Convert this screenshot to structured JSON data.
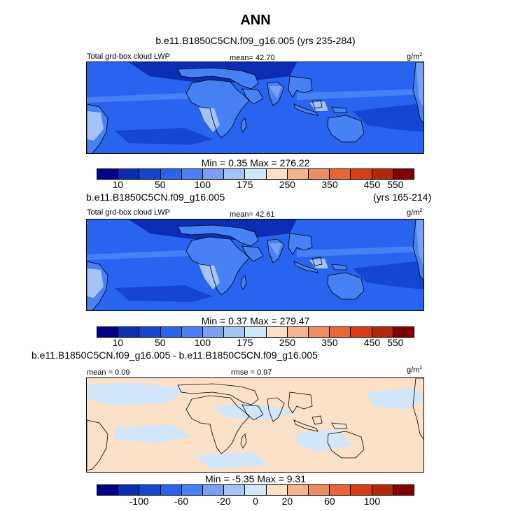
{
  "title": "ANN",
  "panels": [
    {
      "case_title": "b.e11.B1850C5CN.f09_g16.005 (yrs 235-284)",
      "variable": "Total grd-box cloud LWP",
      "mean_text": "mean=  42.70",
      "units": "g/m",
      "units_sup": "2",
      "min_max": "Min =   0.35 Max = 276.22"
    },
    {
      "case_title": "b.e11.B1850C5CN.f09_g16.005",
      "years": "(yrs 165-214)",
      "variable": "Total grd-box cloud LWP",
      "mean_text": "mean=  42.61",
      "units": "g/m",
      "units_sup": "2",
      "min_max": "Min =   0.37 Max = 279.47"
    },
    {
      "case_title": "b.e11.B1850C5CN.f09_g16.005 - b.e11.B1850C5CN.f09_g16.005",
      "mean_text": "mean =   0.09",
      "rmse_text": "rmse =   0.97",
      "units": "g/m",
      "units_sup": "2",
      "min_max": "Min =  -5.35 Max =   9.31"
    }
  ],
  "colorbar_main": {
    "colors": [
      "#00008c",
      "#0a2db4",
      "#1446d2",
      "#2864f0",
      "#4682f5",
      "#78a0f5",
      "#a5c3f5",
      "#d2e6fa",
      "#fae1c8",
      "#f5b48c",
      "#f08c64",
      "#eb6432",
      "#dc3c14",
      "#b4280a",
      "#820000"
    ],
    "labels": [
      "10",
      "50",
      "100",
      "175",
      "250",
      "350",
      "450",
      "550"
    ]
  },
  "colorbar_diff": {
    "colors": [
      "#00008c",
      "#0a2db4",
      "#1446d2",
      "#2864f0",
      "#4682f5",
      "#78a0f5",
      "#a5c3f5",
      "#d2e6fa",
      "#fae1c8",
      "#f5b48c",
      "#f08c64",
      "#eb6432",
      "#dc3c14",
      "#b4280a",
      "#820000"
    ],
    "labels": [
      "-100",
      "-60",
      "-20",
      "0",
      "20",
      "60",
      "100"
    ]
  },
  "map_colors": {
    "ocean_base": "#2864f0",
    "deep": "#1446d2",
    "dry": "#0a2db4",
    "mid": "#4682f5",
    "light": "#78a0f5",
    "lighter": "#a5c3f5",
    "diff_a": "#fae1c8",
    "diff_b": "#d2e6fa"
  }
}
